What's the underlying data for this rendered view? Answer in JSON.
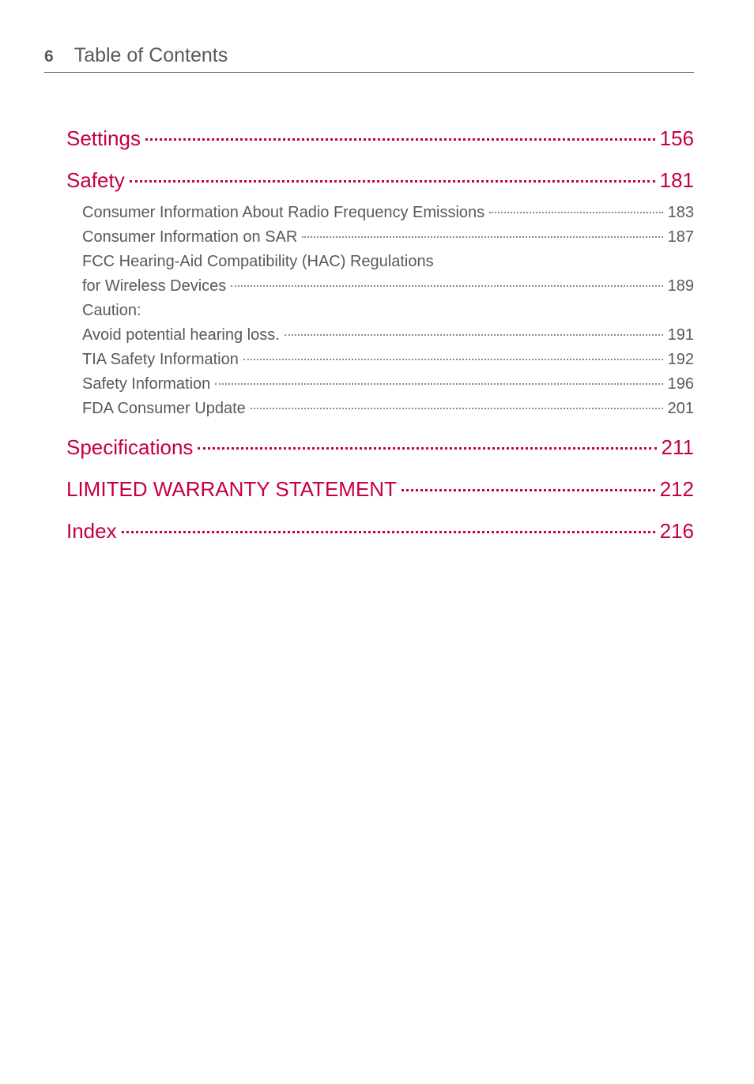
{
  "colors": {
    "accent": "#c5003e",
    "text": "#595959",
    "leader_sub": "#8a8a8a",
    "background": "#ffffff"
  },
  "typography": {
    "header_title_size": 25,
    "page_num_size": 21,
    "main_entry_size": 26,
    "sub_entry_size": 20,
    "font_family": "Arial, Helvetica, sans-serif"
  },
  "header": {
    "page_number": "6",
    "title": "Table of Contents"
  },
  "entries": [
    {
      "type": "main",
      "label": "Settings",
      "page": "156"
    },
    {
      "type": "main",
      "label": "Safety",
      "page": "181"
    },
    {
      "type": "sub",
      "label": "Consumer Information About Radio Frequency Emissions",
      "page": "183"
    },
    {
      "type": "sub",
      "label": "Consumer Information on SAR",
      "page": "187"
    },
    {
      "type": "sub-noline",
      "label": "FCC Hearing-Aid Compatibility (HAC) Regulations"
    },
    {
      "type": "sub",
      "label": "for Wireless Devices",
      "page": "189"
    },
    {
      "type": "sub-noline",
      "label": "Caution:"
    },
    {
      "type": "sub",
      "label": "Avoid potential hearing loss.",
      "page": "191"
    },
    {
      "type": "sub",
      "label": "TIA Safety Information",
      "page": "192"
    },
    {
      "type": "sub",
      "label": "Safety Information",
      "page": "196"
    },
    {
      "type": "sub",
      "label": "FDA Consumer Update",
      "page": "201"
    },
    {
      "type": "main",
      "label": "Specifications",
      "page": "211"
    },
    {
      "type": "main",
      "label": "LIMITED WARRANTY STATEMENT",
      "page": "212"
    },
    {
      "type": "main",
      "label": "Index",
      "page": "216"
    }
  ]
}
